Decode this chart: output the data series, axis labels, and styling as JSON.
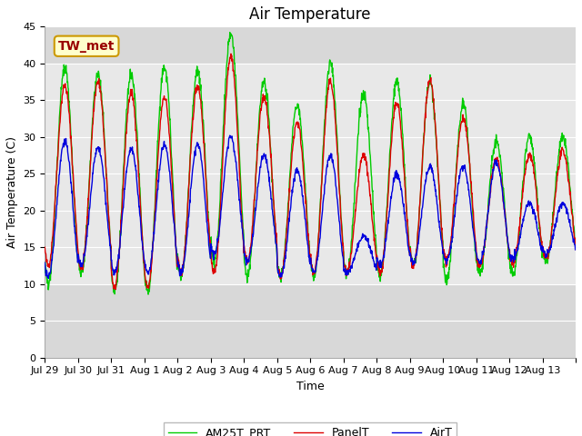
{
  "title": "Air Temperature",
  "xlabel": "Time",
  "ylabel": "Air Temperature (C)",
  "ylim": [
    0,
    45
  ],
  "yticks": [
    0,
    5,
    10,
    15,
    20,
    25,
    30,
    35,
    40,
    45
  ],
  "date_labels": [
    "Jul 29",
    "Jul 30",
    "Jul 31",
    "Aug 1",
    "Aug 2",
    "Aug 3",
    "Aug 4",
    "Aug 5",
    "Aug 6",
    "Aug 7",
    "Aug 8",
    "Aug 9",
    "Aug 10",
    "Aug 11",
    "Aug 12",
    "Aug 13"
  ],
  "annotation_text": "TW_met",
  "annotation_color": "#990000",
  "annotation_bg": "#ffffcc",
  "annotation_border": "#cc9900",
  "panel_color": "#dd0000",
  "air_color": "#0000dd",
  "am25_color": "#00cc00",
  "fig_bg": "#ffffff",
  "plot_bg_inner": "#e8e8e8",
  "plot_bg_outer": "#d8d8d8",
  "legend_labels": [
    "PanelT",
    "AirT",
    "AM25T_PRT"
  ],
  "grid_color": "#ffffff",
  "title_fontsize": 12,
  "axis_fontsize": 9,
  "tick_fontsize": 8,
  "linewidth": 1.0,
  "days": 16,
  "points_per_day": 96,
  "panel_mins": [
    12.5,
    12.0,
    9.5,
    9.5,
    11.5,
    11.5,
    13.0,
    11.0,
    11.5,
    11.5,
    11.5,
    12.5,
    13.0,
    12.5,
    13.0,
    13.5
  ],
  "panel_maxs": [
    37.0,
    37.5,
    36.0,
    35.5,
    37.0,
    41.0,
    35.5,
    32.0,
    37.5,
    27.5,
    34.5,
    37.5,
    32.5,
    27.0,
    27.5,
    28.0
  ],
  "air_mins": [
    11.0,
    12.5,
    11.5,
    11.5,
    11.5,
    14.0,
    13.0,
    11.0,
    11.5,
    11.5,
    12.5,
    13.0,
    13.0,
    13.0,
    13.5,
    14.0
  ],
  "air_maxs": [
    29.5,
    28.5,
    28.5,
    29.0,
    29.0,
    30.0,
    27.5,
    25.5,
    27.5,
    16.5,
    25.0,
    26.0,
    26.0,
    26.5,
    21.0,
    21.0
  ],
  "am25_mins": [
    10.0,
    11.5,
    9.0,
    9.0,
    11.0,
    13.0,
    11.0,
    11.0,
    11.0,
    11.5,
    11.0,
    12.5,
    10.5,
    11.5,
    11.5,
    13.0
  ],
  "am25_maxs": [
    39.5,
    38.5,
    38.5,
    39.5,
    39.0,
    44.0,
    37.5,
    34.5,
    40.0,
    36.0,
    37.5,
    37.5,
    34.5,
    29.5,
    30.0,
    30.0
  ]
}
